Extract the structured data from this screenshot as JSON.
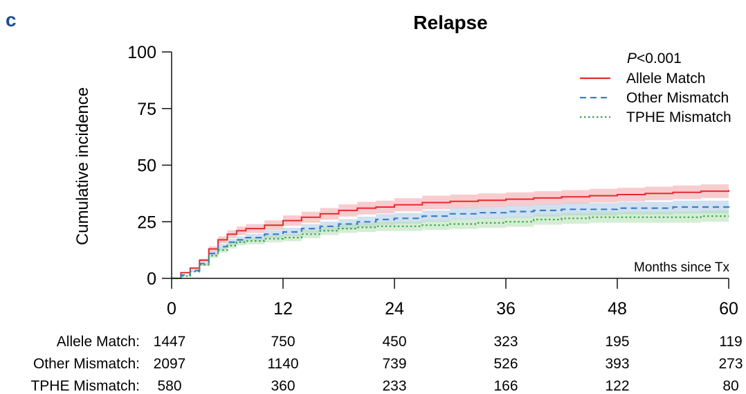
{
  "panel_label": "c",
  "chart_data": {
    "type": "line",
    "title": "Relapse",
    "xlabel": "Months since Tx",
    "ylabel": "Cumulative incidence",
    "xlim": [
      0,
      60
    ],
    "ylim": [
      0,
      100
    ],
    "x_ticks": [
      "0",
      "12",
      "24",
      "36",
      "48",
      "60"
    ],
    "y_ticks": [
      "0",
      "25",
      "50",
      "75",
      "100"
    ],
    "grid": false,
    "p_value": {
      "prefix": "P",
      "rest": "<0.001"
    },
    "legend_position": "top-right",
    "series": [
      {
        "name": "Allele Match",
        "color": "#e32b2b",
        "band_color": "#f2a3a8",
        "dash": "solid",
        "x": [
          0,
          0.5,
          1,
          2,
          3,
          4,
          5,
          6,
          7,
          8,
          10,
          12,
          14,
          16,
          18,
          20,
          22,
          24,
          27,
          30,
          33,
          36,
          39,
          42,
          45,
          48,
          51,
          54,
          57,
          60
        ],
        "y": [
          0,
          0,
          2.5,
          4.5,
          8,
          13,
          17,
          19.5,
          21,
          22,
          23.5,
          25.5,
          27,
          28.5,
          30,
          31,
          31.5,
          32.5,
          33.5,
          34,
          34.5,
          35,
          35.5,
          36,
          36.5,
          37,
          37.5,
          38,
          38.5,
          39
        ]
      },
      {
        "name": "Other Mismatch",
        "color": "#3b7fc4",
        "band_color": "#aac9e6",
        "dash": "dashed",
        "x": [
          0,
          0.5,
          1,
          2,
          3,
          4,
          5,
          6,
          7,
          8,
          10,
          12,
          14,
          16,
          18,
          20,
          22,
          24,
          27,
          30,
          33,
          36,
          39,
          42,
          45,
          48,
          51,
          54,
          57,
          60
        ],
        "y": [
          0,
          0,
          1.5,
          3.5,
          6.5,
          11,
          14,
          16,
          17,
          18,
          19.5,
          20.5,
          22,
          23,
          24,
          25,
          26,
          26.5,
          27.5,
          28.5,
          29,
          29.5,
          30,
          30.5,
          30.5,
          31,
          31,
          31.5,
          31.5,
          32
        ]
      },
      {
        "name": "TPHE Mismatch",
        "color": "#3aa64a",
        "band_color": "#b5dfb2",
        "dash": "dotted",
        "x": [
          0,
          0.5,
          1,
          2,
          3,
          4,
          5,
          6,
          7,
          8,
          10,
          12,
          14,
          16,
          18,
          20,
          22,
          24,
          27,
          30,
          33,
          36,
          39,
          42,
          45,
          48,
          51,
          54,
          57,
          60
        ],
        "y": [
          0,
          0,
          1,
          3,
          6,
          10,
          12.5,
          14.5,
          16,
          16.5,
          17.5,
          18,
          19.5,
          21,
          22,
          22.5,
          23,
          23,
          23.5,
          24,
          24.5,
          25,
          26,
          26.5,
          27,
          27,
          27,
          27,
          27.5,
          27.5
        ]
      }
    ],
    "risk_table": {
      "rows": [
        {
          "label": "Allele Match:",
          "values": [
            "1447",
            "750",
            "450",
            "323",
            "195",
            "119"
          ]
        },
        {
          "label": "Other Mismatch:",
          "values": [
            "2097",
            "1140",
            "739",
            "526",
            "393",
            "273"
          ]
        },
        {
          "label": "TPHE Mismatch:",
          "values": [
            "580",
            "360",
            "233",
            "166",
            "122",
            "80"
          ]
        }
      ]
    }
  }
}
